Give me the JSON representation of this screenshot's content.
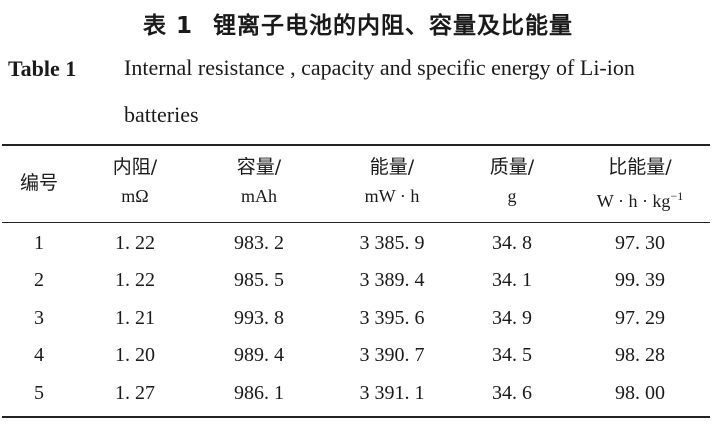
{
  "title_cn": {
    "label": "表 1",
    "text": "锂离子电池的内阻、容量及比能量"
  },
  "title_en": {
    "label": "Table 1",
    "text": "Internal resistance , capacity and specific energy of Li-ion batteries"
  },
  "table": {
    "headers": [
      {
        "line1": "编号",
        "line2": ""
      },
      {
        "line1": "内阻/",
        "line2": "mΩ"
      },
      {
        "line1": "容量/",
        "line2": "mAh"
      },
      {
        "line1": "能量/",
        "line2": "mW · h"
      },
      {
        "line1": "质量/",
        "line2": "g"
      },
      {
        "line1": "比能量/",
        "line2": "W · h · kg"
      }
    ],
    "unit_superscript": "−1",
    "rows": [
      [
        "1",
        "1. 22",
        "983. 2",
        "3 385. 9",
        "34. 8",
        "97. 30"
      ],
      [
        "2",
        "1. 22",
        "985. 5",
        "3 389. 4",
        "34. 1",
        "99. 39"
      ],
      [
        "3",
        "1. 21",
        "993. 8",
        "3 395. 6",
        "34. 9",
        "97. 29"
      ],
      [
        "4",
        "1. 20",
        "989. 4",
        "3 390. 7",
        "34. 5",
        "98. 28"
      ],
      [
        "5",
        "1. 27",
        "986. 1",
        "3 391. 1",
        "34. 6",
        "98. 00"
      ]
    ]
  }
}
